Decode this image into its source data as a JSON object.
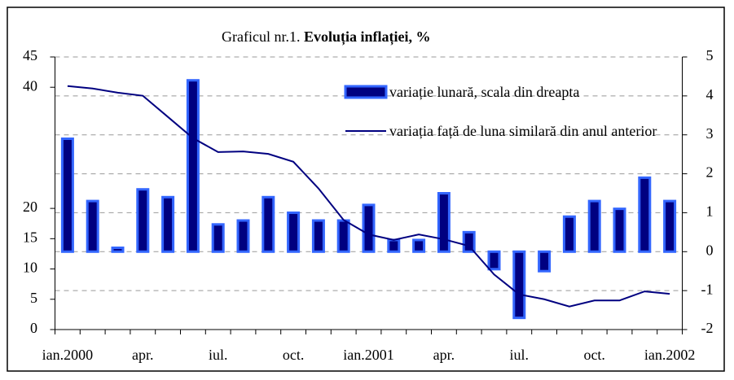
{
  "chart_data": {
    "type": "bar_line",
    "figure_label": "Graficul nr.1.",
    "title": "Evoluția inflației, %",
    "categories": [
      "ian.2000",
      null,
      null,
      "apr.",
      null,
      null,
      "iul.",
      null,
      null,
      "oct.",
      null,
      null,
      "ian.2001",
      null,
      null,
      "apr.",
      null,
      null,
      "iul.",
      null,
      null,
      "oct.",
      null,
      null,
      "ian.2002"
    ],
    "series": [
      {
        "name": "variație lunară, scala din dreapta",
        "kind": "bar",
        "axis": "y2",
        "color": "#000080",
        "edge_color": "#3366ff",
        "values": [
          2.9,
          1.3,
          0.1,
          1.6,
          1.4,
          4.4,
          0.7,
          0.8,
          1.4,
          1.0,
          0.8,
          0.8,
          1.2,
          0.3,
          0.3,
          1.5,
          0.5,
          -0.45,
          -1.7,
          -0.5,
          0.9,
          1.3,
          1.1,
          1.9,
          1.3
        ]
      },
      {
        "name": "variația față de luna similară din anul anterior",
        "kind": "line",
        "axis": "y",
        "color": "#000080",
        "values": [
          40.2,
          39.8,
          39.1,
          38.6,
          35.1,
          31.6,
          29.3,
          29.4,
          29.0,
          27.7,
          23.3,
          18.1,
          15.7,
          14.8,
          15.7,
          14.9,
          13.8,
          9.1,
          5.8,
          5.0,
          3.8,
          4.8,
          4.8,
          6.3,
          5.9
        ]
      }
    ],
    "ylim": [
      0,
      45
    ],
    "yticks": [
      0,
      5,
      10,
      15,
      20,
      40,
      45
    ],
    "y2lim": [
      -2,
      5
    ],
    "y2ticks": [
      -2,
      -1,
      0,
      1,
      2,
      3,
      4,
      5
    ],
    "grid": true
  }
}
